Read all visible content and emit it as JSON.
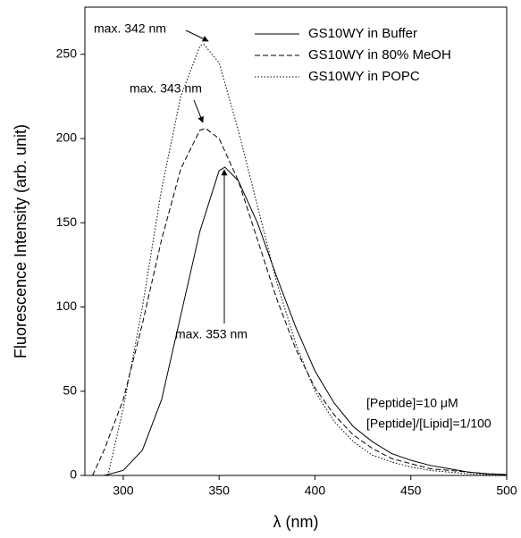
{
  "chart_data": {
    "type": "line",
    "xlabel": "λ (nm)",
    "ylabel": "Fluorescence Intensity (arb. unit)",
    "xlim": [
      280,
      500
    ],
    "ylim": [
      0,
      278
    ],
    "xticks": [
      300,
      350,
      400,
      450,
      500
    ],
    "yticks": [
      0,
      50,
      100,
      150,
      200,
      250
    ],
    "legend": "upper right",
    "series": [
      {
        "name": "GS10WY in Buffer",
        "color": "#000000",
        "line_style": "solid",
        "x": [
          290,
          300,
          310,
          320,
          330,
          340,
          350,
          353,
          360,
          370,
          380,
          390,
          400,
          410,
          420,
          430,
          440,
          450,
          460,
          470,
          480,
          490,
          500
        ],
        "values": [
          0,
          3,
          15,
          45,
          95,
          145,
          181,
          183,
          175,
          150,
          118,
          88,
          62,
          43,
          29,
          20,
          13,
          9,
          6,
          4,
          2,
          1,
          0.5
        ]
      },
      {
        "name": "GS10WY in 80% MeOH",
        "color": "#000000",
        "line_style": "dashed",
        "x": [
          284,
          290,
          300,
          310,
          320,
          330,
          340,
          343,
          350,
          360,
          370,
          380,
          390,
          400,
          410,
          420,
          430,
          440,
          450,
          460,
          470,
          480,
          490,
          500
        ],
        "values": [
          0,
          15,
          45,
          90,
          140,
          182,
          205,
          206,
          200,
          175,
          140,
          105,
          75,
          52,
          36,
          24,
          16,
          10,
          7,
          4,
          3,
          2,
          1,
          0.5
        ]
      },
      {
        "name": "GS10WY in POPC",
        "color": "#000000",
        "line_style": "dotted",
        "x": [
          292,
          300,
          310,
          320,
          330,
          340,
          342,
          350,
          360,
          370,
          380,
          390,
          400,
          410,
          420,
          430,
          440,
          450,
          460,
          470,
          480,
          490,
          500
        ],
        "values": [
          0,
          40,
          100,
          170,
          225,
          255,
          256,
          245,
          205,
          160,
          115,
          78,
          50,
          32,
          20,
          12,
          8,
          5,
          3,
          2,
          1,
          0.5,
          0.3
        ]
      }
    ],
    "annotations": [
      "max. 342 nm",
      "max. 343 nm",
      "max. 353 nm",
      "[Peptide]=10 μM",
      "[Peptide]/[Lipid]=1/100"
    ]
  }
}
